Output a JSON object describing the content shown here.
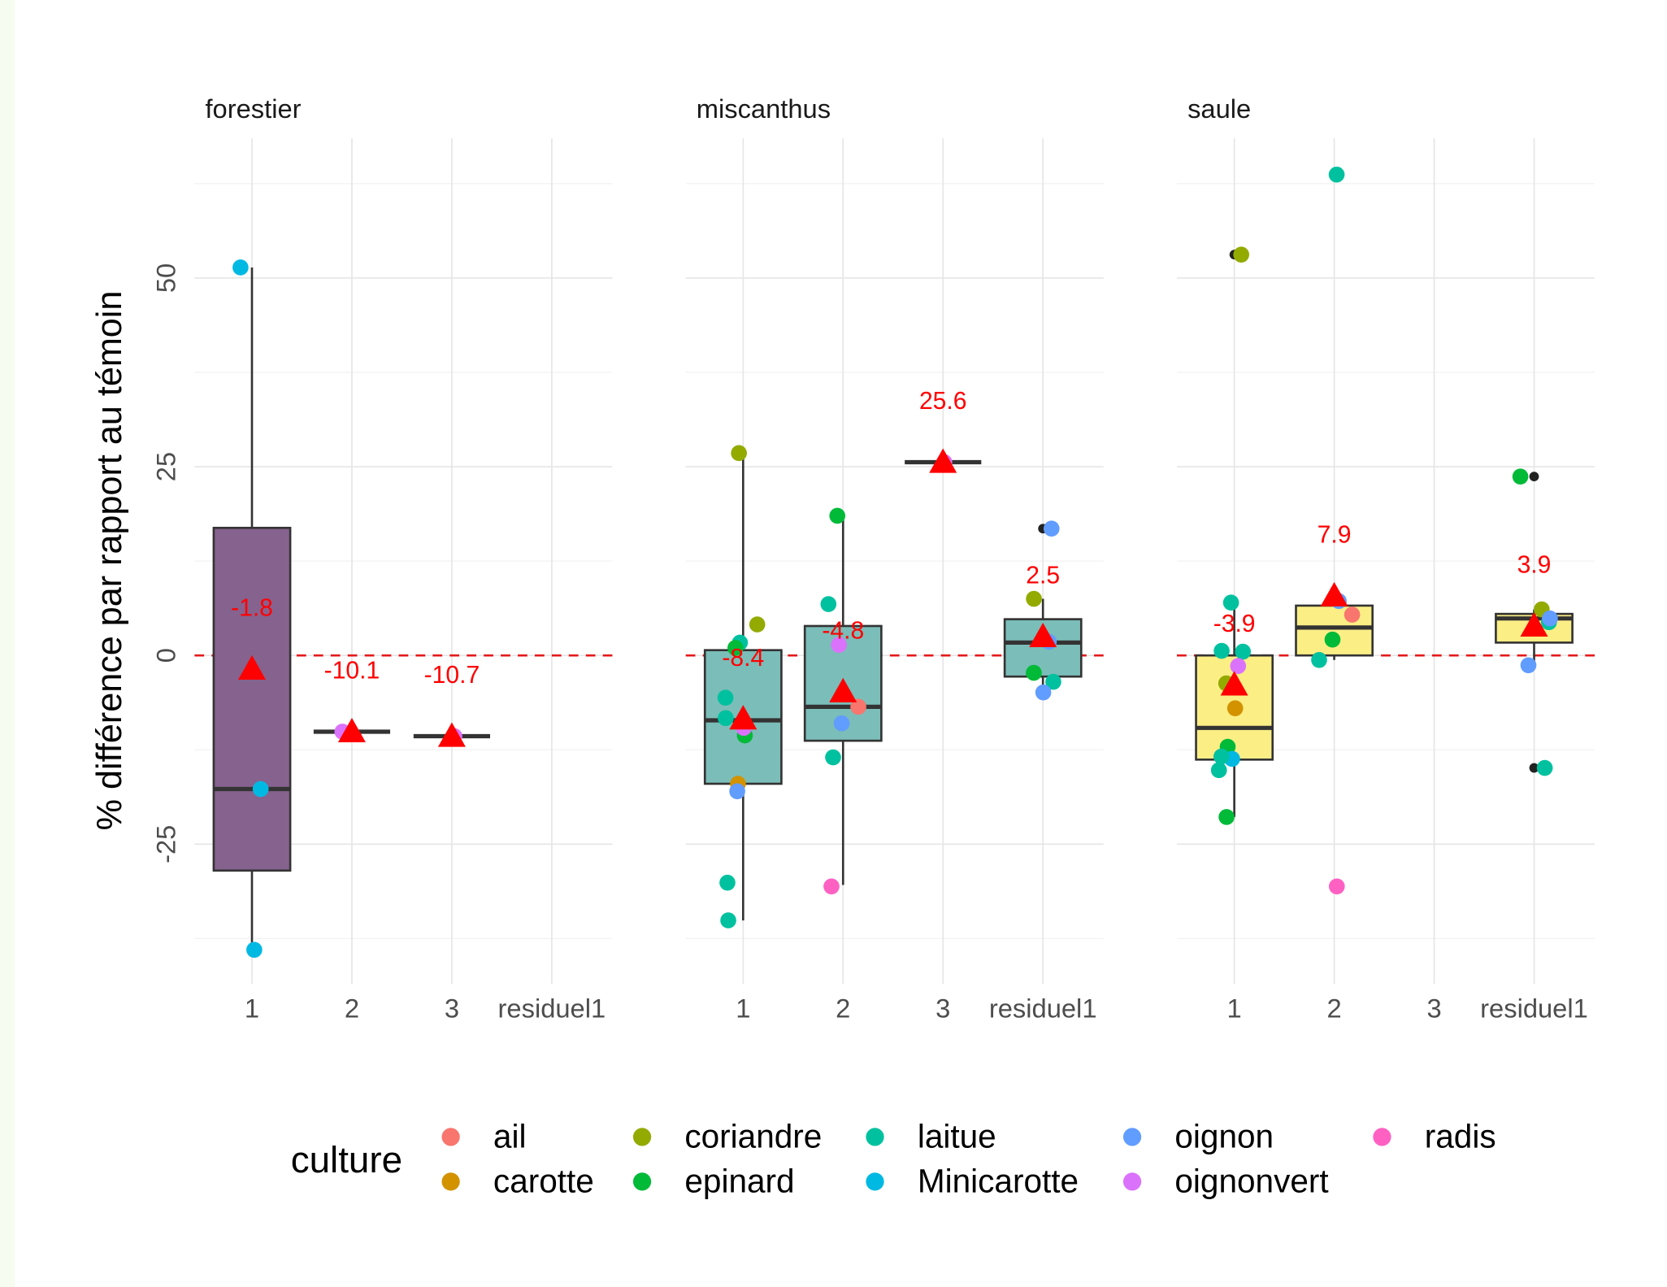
{
  "chart_data": {
    "type": "box",
    "ylabel": "% différence par rapport au témoin",
    "ylim": [
      -43.5,
      68.5
    ],
    "yticks": [
      -25,
      0,
      25,
      50
    ],
    "minor_grid": [
      -37.5,
      -12.5,
      12.5,
      37.5,
      62.5
    ],
    "grid": true,
    "reference_line": 0,
    "reference_color": "#e41a1c",
    "mean_color": "#ff0000",
    "legend_title": "culture",
    "legend_position": "bottom",
    "legend": [
      {
        "name": "ail",
        "color": "#F8766D"
      },
      {
        "name": "carotte",
        "color": "#D39200"
      },
      {
        "name": "coriandre",
        "color": "#93AA00"
      },
      {
        "name": "epinard",
        "color": "#00BA38"
      },
      {
        "name": "laitue",
        "color": "#00C19F"
      },
      {
        "name": "Minicarotte",
        "color": "#00B9E3"
      },
      {
        "name": "oignon",
        "color": "#619CFF"
      },
      {
        "name": "oignonvert",
        "color": "#DB72FB"
      },
      {
        "name": "radis",
        "color": "#FF61C3"
      }
    ],
    "facets": [
      {
        "title": "forestier",
        "color": "#86628e",
        "categories": [
          "1",
          "2",
          "3",
          "residuel1"
        ],
        "boxes": [
          {
            "lower_whisker": -39.0,
            "q1": -28.5,
            "median": -17.7,
            "q3": 16.9,
            "upper_whisker": 51.4,
            "outliers": [],
            "mean": -1.8,
            "points": [
              {
                "culture": "Minicarotte",
                "value": 51.4
              },
              {
                "culture": "Minicarotte",
                "value": -17.7
              },
              {
                "culture": "Minicarotte",
                "value": -39.0
              }
            ]
          },
          {
            "lower_whisker": -10.1,
            "q1": -10.1,
            "median": -10.1,
            "q3": -10.1,
            "upper_whisker": -10.1,
            "outliers": [],
            "mean": -10.1,
            "points": [
              {
                "culture": "oignonvert",
                "value": -10.1
              }
            ]
          },
          {
            "lower_whisker": -10.7,
            "q1": -10.7,
            "median": -10.7,
            "q3": -10.7,
            "upper_whisker": -10.7,
            "outliers": [],
            "mean": -10.7,
            "points": [
              {
                "culture": "oignonvert",
                "value": -10.7
              }
            ]
          },
          null
        ]
      },
      {
        "title": "miscanthus",
        "color": "#7bbdb8",
        "categories": [
          "1",
          "2",
          "3",
          "residuel1"
        ],
        "boxes": [
          {
            "lower_whisker": -35.1,
            "q1": -17.0,
            "median": -8.6,
            "q3": 0.7,
            "upper_whisker": 26.8,
            "outliers": [],
            "mean": -8.4,
            "points": [
              {
                "culture": "coriandre",
                "value": 26.8
              },
              {
                "culture": "coriandre",
                "value": 4.1
              },
              {
                "culture": "laitue",
                "value": 1.7
              },
              {
                "culture": "epinard",
                "value": 1.0
              },
              {
                "culture": "laitue",
                "value": -5.6
              },
              {
                "culture": "laitue",
                "value": -8.3
              },
              {
                "culture": "epinard",
                "value": -10.6
              },
              {
                "culture": "oignonvert",
                "value": -9.6
              },
              {
                "culture": "carotte",
                "value": -17.0
              },
              {
                "culture": "oignon",
                "value": -18.0
              },
              {
                "culture": "laitue",
                "value": -30.1
              },
              {
                "culture": "laitue",
                "value": -35.1
              }
            ]
          },
          {
            "lower_whisker": -30.4,
            "q1": -11.3,
            "median": -6.8,
            "q3": 3.9,
            "upper_whisker": 18.3,
            "outliers": [],
            "mean": -4.8,
            "points": [
              {
                "culture": "epinard",
                "value": 18.5
              },
              {
                "culture": "laitue",
                "value": 6.8
              },
              {
                "culture": "oignonvert",
                "value": 1.4
              },
              {
                "culture": "ail",
                "value": -6.8
              },
              {
                "culture": "oignon",
                "value": -9.0
              },
              {
                "culture": "laitue",
                "value": -13.5
              },
              {
                "culture": "radis",
                "value": -30.6
              }
            ]
          },
          {
            "lower_whisker": 25.6,
            "q1": 25.6,
            "median": 25.6,
            "q3": 25.6,
            "upper_whisker": 25.6,
            "outliers": [],
            "mean": 25.6,
            "points": [
              {
                "culture": "oignonvert",
                "value": 25.6
              }
            ]
          },
          {
            "lower_whisker": -4.1,
            "q1": -2.8,
            "median": 1.7,
            "q3": 4.8,
            "upper_whisker": 7.5,
            "outliers": [
              16.8
            ],
            "mean": 2.5,
            "points": [
              {
                "culture": "coriandre",
                "value": 7.5
              },
              {
                "culture": "oignon",
                "value": 16.8
              },
              {
                "culture": "oignon",
                "value": 1.8
              },
              {
                "culture": "epinard",
                "value": -2.3
              },
              {
                "culture": "laitue",
                "value": -3.5
              },
              {
                "culture": "oignon",
                "value": -4.9
              }
            ]
          }
        ]
      },
      {
        "title": "saule",
        "color": "#fbee85",
        "categories": [
          "1",
          "2",
          "3",
          "residuel1"
        ],
        "boxes": [
          {
            "lower_whisker": -21.4,
            "q1": -13.8,
            "median": -9.6,
            "q3": 0,
            "upper_whisker": 7.0,
            "outliers": [
              53.1
            ],
            "mean": -3.9,
            "points": [
              {
                "culture": "coriandre",
                "value": 53.1
              },
              {
                "culture": "laitue",
                "value": 7.0
              },
              {
                "culture": "laitue",
                "value": 0.6
              },
              {
                "culture": "laitue",
                "value": 0.5
              },
              {
                "culture": "oignonvert",
                "value": -1.4
              },
              {
                "culture": "coriandre",
                "value": -3.7
              },
              {
                "culture": "carotte",
                "value": -7.0
              },
              {
                "culture": "epinard",
                "value": -12.1
              },
              {
                "culture": "Minicarotte",
                "value": -13.7
              },
              {
                "culture": "laitue",
                "value": -13.4
              },
              {
                "culture": "laitue",
                "value": -15.2
              },
              {
                "culture": "epinard",
                "value": -21.4
              }
            ]
          },
          {
            "lower_whisker": -0.6,
            "q1": 0,
            "median": 3.7,
            "q3": 6.6,
            "upper_whisker": 7.2,
            "outliers": [
              63.7,
              -30.6
            ],
            "mean": 7.9,
            "points": [
              {
                "culture": "laitue",
                "value": 63.7
              },
              {
                "culture": "oignon",
                "value": 7.2
              },
              {
                "culture": "ail",
                "value": 5.4
              },
              {
                "culture": "epinard",
                "value": 2.1
              },
              {
                "culture": "laitue",
                "value": -0.6
              },
              {
                "culture": "radis",
                "value": -30.6
              }
            ]
          },
          null,
          {
            "lower_whisker": -1.3,
            "q1": 1.7,
            "median": 4.9,
            "q3": 5.5,
            "upper_whisker": 6.1,
            "outliers": [
              23.7,
              -14.9
            ],
            "mean": 3.9,
            "points": [
              {
                "culture": "epinard",
                "value": 23.7
              },
              {
                "culture": "coriandre",
                "value": 6.1
              },
              {
                "culture": "laitue",
                "value": 4.4
              },
              {
                "culture": "oignon",
                "value": 4.9
              },
              {
                "culture": "oignon",
                "value": -1.3
              },
              {
                "culture": "laitue",
                "value": -14.9
              }
            ]
          }
        ]
      }
    ]
  }
}
